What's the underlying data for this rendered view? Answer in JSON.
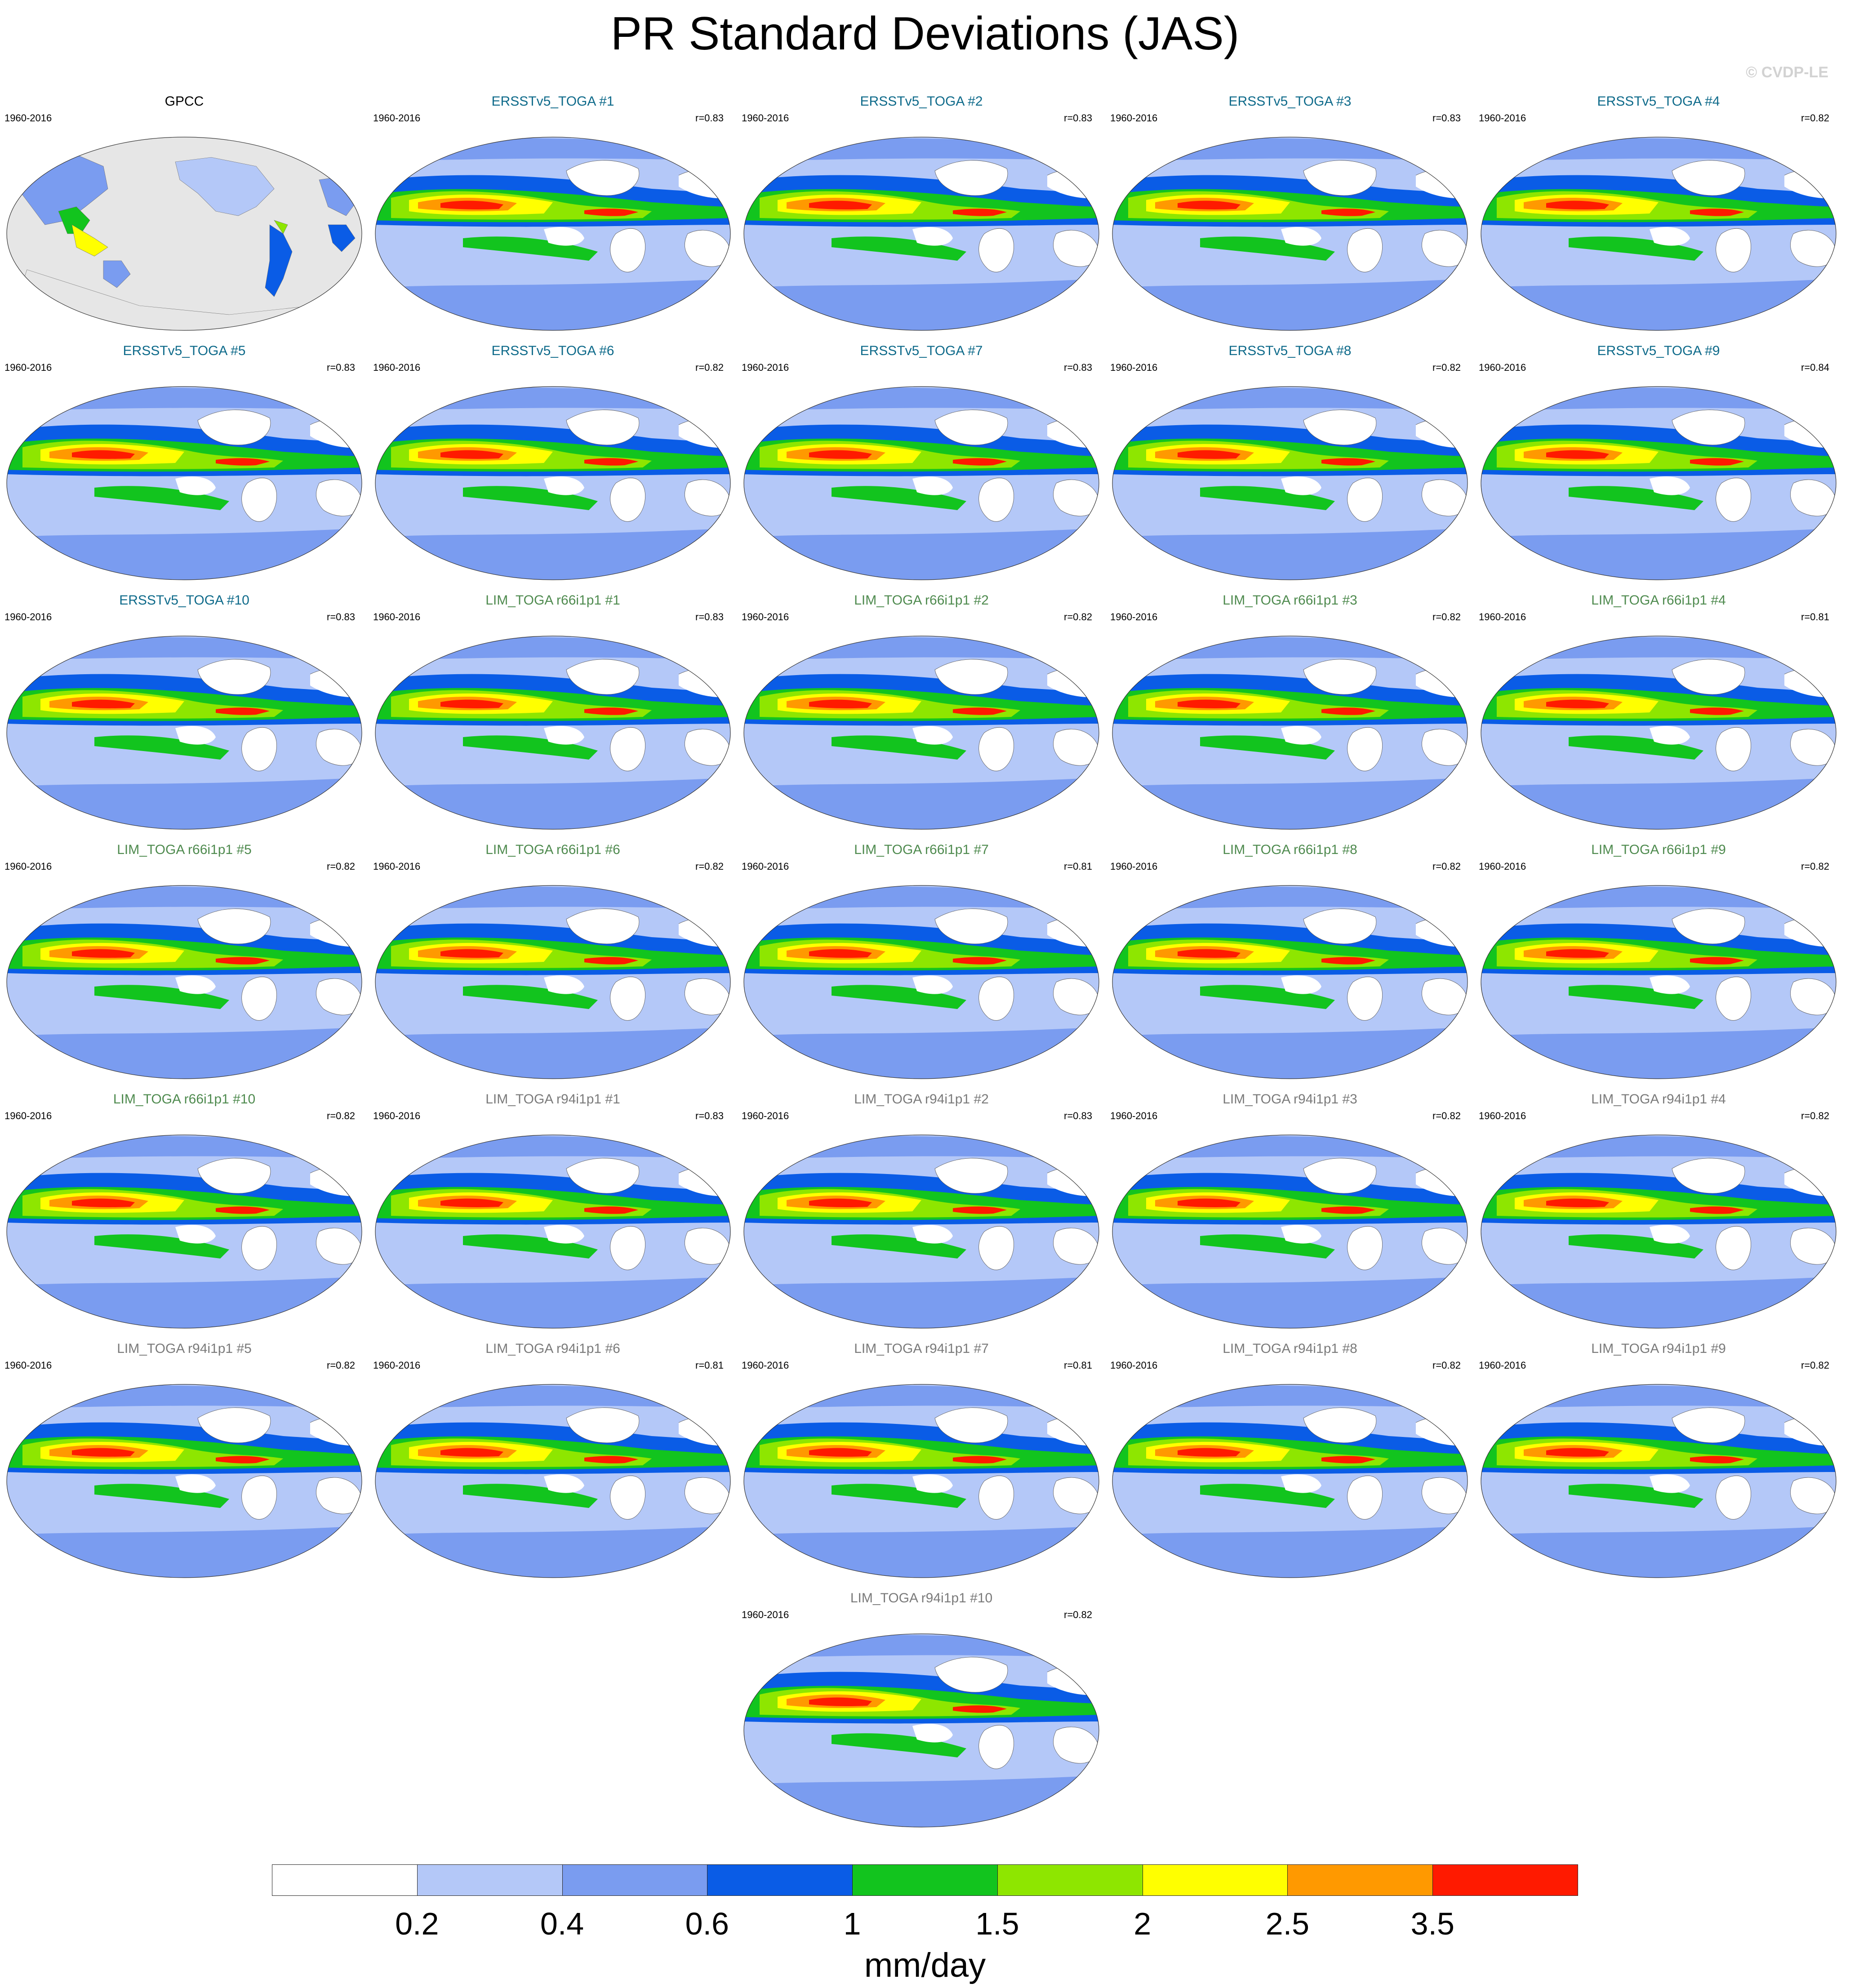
{
  "title": "PR Standard Deviations (JAS)",
  "watermark": "© CVDP-LE",
  "colorbar": {
    "units": "mm/day",
    "labels": [
      "0.2",
      "0.4",
      "0.6",
      "1",
      "1.5",
      "2",
      "2.5",
      "3.5"
    ],
    "colors": [
      "#ffffff",
      "#b4c8f8",
      "#7a9cf0",
      "#0a5ce6",
      "#12c41e",
      "#8ee600",
      "#ffff00",
      "#ff9900",
      "#ff1a00"
    ]
  },
  "panels": [
    {
      "title": "GPCC",
      "period": "1960-2016",
      "corr": "",
      "group": "obs"
    },
    {
      "title": "ERSSTv5_TOGA #1",
      "period": "1960-2016",
      "corr": "r=0.83",
      "group": "ersst"
    },
    {
      "title": "ERSSTv5_TOGA #2",
      "period": "1960-2016",
      "corr": "r=0.83",
      "group": "ersst"
    },
    {
      "title": "ERSSTv5_TOGA #3",
      "period": "1960-2016",
      "corr": "r=0.83",
      "group": "ersst"
    },
    {
      "title": "ERSSTv5_TOGA #4",
      "period": "1960-2016",
      "corr": "r=0.82",
      "group": "ersst"
    },
    {
      "title": "ERSSTv5_TOGA #5",
      "period": "1960-2016",
      "corr": "r=0.83",
      "group": "ersst"
    },
    {
      "title": "ERSSTv5_TOGA #6",
      "period": "1960-2016",
      "corr": "r=0.82",
      "group": "ersst"
    },
    {
      "title": "ERSSTv5_TOGA #7",
      "period": "1960-2016",
      "corr": "r=0.83",
      "group": "ersst"
    },
    {
      "title": "ERSSTv5_TOGA #8",
      "period": "1960-2016",
      "corr": "r=0.82",
      "group": "ersst"
    },
    {
      "title": "ERSSTv5_TOGA #9",
      "period": "1960-2016",
      "corr": "r=0.84",
      "group": "ersst"
    },
    {
      "title": "ERSSTv5_TOGA #10",
      "period": "1960-2016",
      "corr": "r=0.83",
      "group": "ersst"
    },
    {
      "title": "LIM_TOGA r66i1p1 #1",
      "period": "1960-2016",
      "corr": "r=0.83",
      "group": "r66"
    },
    {
      "title": "LIM_TOGA r66i1p1 #2",
      "period": "1960-2016",
      "corr": "r=0.82",
      "group": "r66"
    },
    {
      "title": "LIM_TOGA r66i1p1 #3",
      "period": "1960-2016",
      "corr": "r=0.82",
      "group": "r66"
    },
    {
      "title": "LIM_TOGA r66i1p1 #4",
      "period": "1960-2016",
      "corr": "r=0.81",
      "group": "r66"
    },
    {
      "title": "LIM_TOGA r66i1p1 #5",
      "period": "1960-2016",
      "corr": "r=0.82",
      "group": "r66"
    },
    {
      "title": "LIM_TOGA r66i1p1 #6",
      "period": "1960-2016",
      "corr": "r=0.82",
      "group": "r66"
    },
    {
      "title": "LIM_TOGA r66i1p1 #7",
      "period": "1960-2016",
      "corr": "r=0.81",
      "group": "r66"
    },
    {
      "title": "LIM_TOGA r66i1p1 #8",
      "period": "1960-2016",
      "corr": "r=0.82",
      "group": "r66"
    },
    {
      "title": "LIM_TOGA r66i1p1 #9",
      "period": "1960-2016",
      "corr": "r=0.82",
      "group": "r66"
    },
    {
      "title": "LIM_TOGA r66i1p1 #10",
      "period": "1960-2016",
      "corr": "r=0.82",
      "group": "r66"
    },
    {
      "title": "LIM_TOGA r94i1p1 #1",
      "period": "1960-2016",
      "corr": "r=0.83",
      "group": "r94"
    },
    {
      "title": "LIM_TOGA r94i1p1 #2",
      "period": "1960-2016",
      "corr": "r=0.83",
      "group": "r94"
    },
    {
      "title": "LIM_TOGA r94i1p1 #3",
      "period": "1960-2016",
      "corr": "r=0.82",
      "group": "r94"
    },
    {
      "title": "LIM_TOGA r94i1p1 #4",
      "period": "1960-2016",
      "corr": "r=0.82",
      "group": "r94"
    },
    {
      "title": "LIM_TOGA r94i1p1 #5",
      "period": "1960-2016",
      "corr": "r=0.82",
      "group": "r94"
    },
    {
      "title": "LIM_TOGA r94i1p1 #6",
      "period": "1960-2016",
      "corr": "r=0.81",
      "group": "r94"
    },
    {
      "title": "LIM_TOGA r94i1p1 #7",
      "period": "1960-2016",
      "corr": "r=0.81",
      "group": "r94"
    },
    {
      "title": "LIM_TOGA r94i1p1 #8",
      "period": "1960-2016",
      "corr": "r=0.82",
      "group": "r94"
    },
    {
      "title": "LIM_TOGA r94i1p1 #9",
      "period": "1960-2016",
      "corr": "r=0.82",
      "group": "r94"
    },
    {
      "title": "LIM_TOGA r94i1p1 #10",
      "period": "1960-2016",
      "corr": "r=0.82",
      "group": "r94"
    }
  ]
}
